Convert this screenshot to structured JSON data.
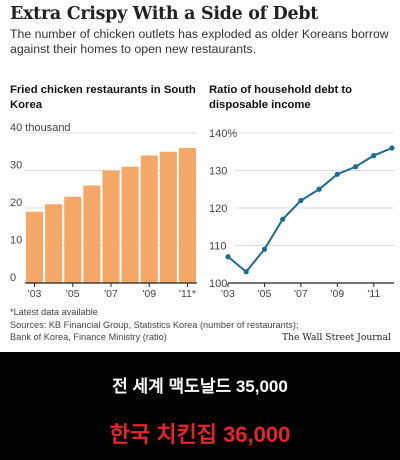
{
  "title": "Extra Crispy With a Side of Debt",
  "subtitle": "The number of chicken outlets has exploded as older Koreans borrow against their homes to open new restaurants.",
  "note": "*Latest data available",
  "source_line1": "Sources: KB Financial Group, Statistics Korea (number of restaurants);",
  "source_line2": "Bank of Korea, Finance Ministry (ratio)",
  "brand": "The Wall Street Journal",
  "caption_line1": "전 세계 맥도날드 35,000",
  "caption_line2": "한국 치킨집 36,000",
  "colors": {
    "bar": "#f3a868",
    "line": "#1f6a93",
    "caption_accent": "#e8232a"
  },
  "chart_data": [
    {
      "type": "bar",
      "title": "Fried chicken restaurants in South Korea",
      "categories": [
        "'03",
        "'04",
        "'05",
        "'06",
        "'07",
        "'08",
        "'09",
        "'10",
        "'11"
      ],
      "values": [
        19,
        21,
        23,
        26,
        30,
        31,
        34,
        35,
        36
      ],
      "ylim": [
        0,
        40
      ],
      "yticks": [
        0,
        10,
        20,
        30,
        40
      ],
      "ytick_labels": [
        "0",
        "10",
        "20",
        "30",
        "40 thousand"
      ],
      "xtick_labels": [
        "'03",
        "'05",
        "'07",
        "'09",
        "'11*"
      ],
      "grid": true
    },
    {
      "type": "line",
      "title": "Ratio of household debt to disposable income",
      "x": [
        2003,
        2004,
        2005,
        2006,
        2007,
        2008,
        2009,
        2010,
        2011,
        2012
      ],
      "values": [
        107,
        103,
        109,
        117,
        122,
        125,
        129,
        131,
        134,
        136
      ],
      "ylim": [
        100,
        140
      ],
      "yticks": [
        100,
        110,
        120,
        130,
        140
      ],
      "ytick_labels": [
        "100",
        "110",
        "120",
        "130",
        "140%"
      ],
      "xtick_labels": [
        "'03",
        "'05",
        "'07",
        "'09",
        "'11"
      ],
      "grid": true
    }
  ]
}
